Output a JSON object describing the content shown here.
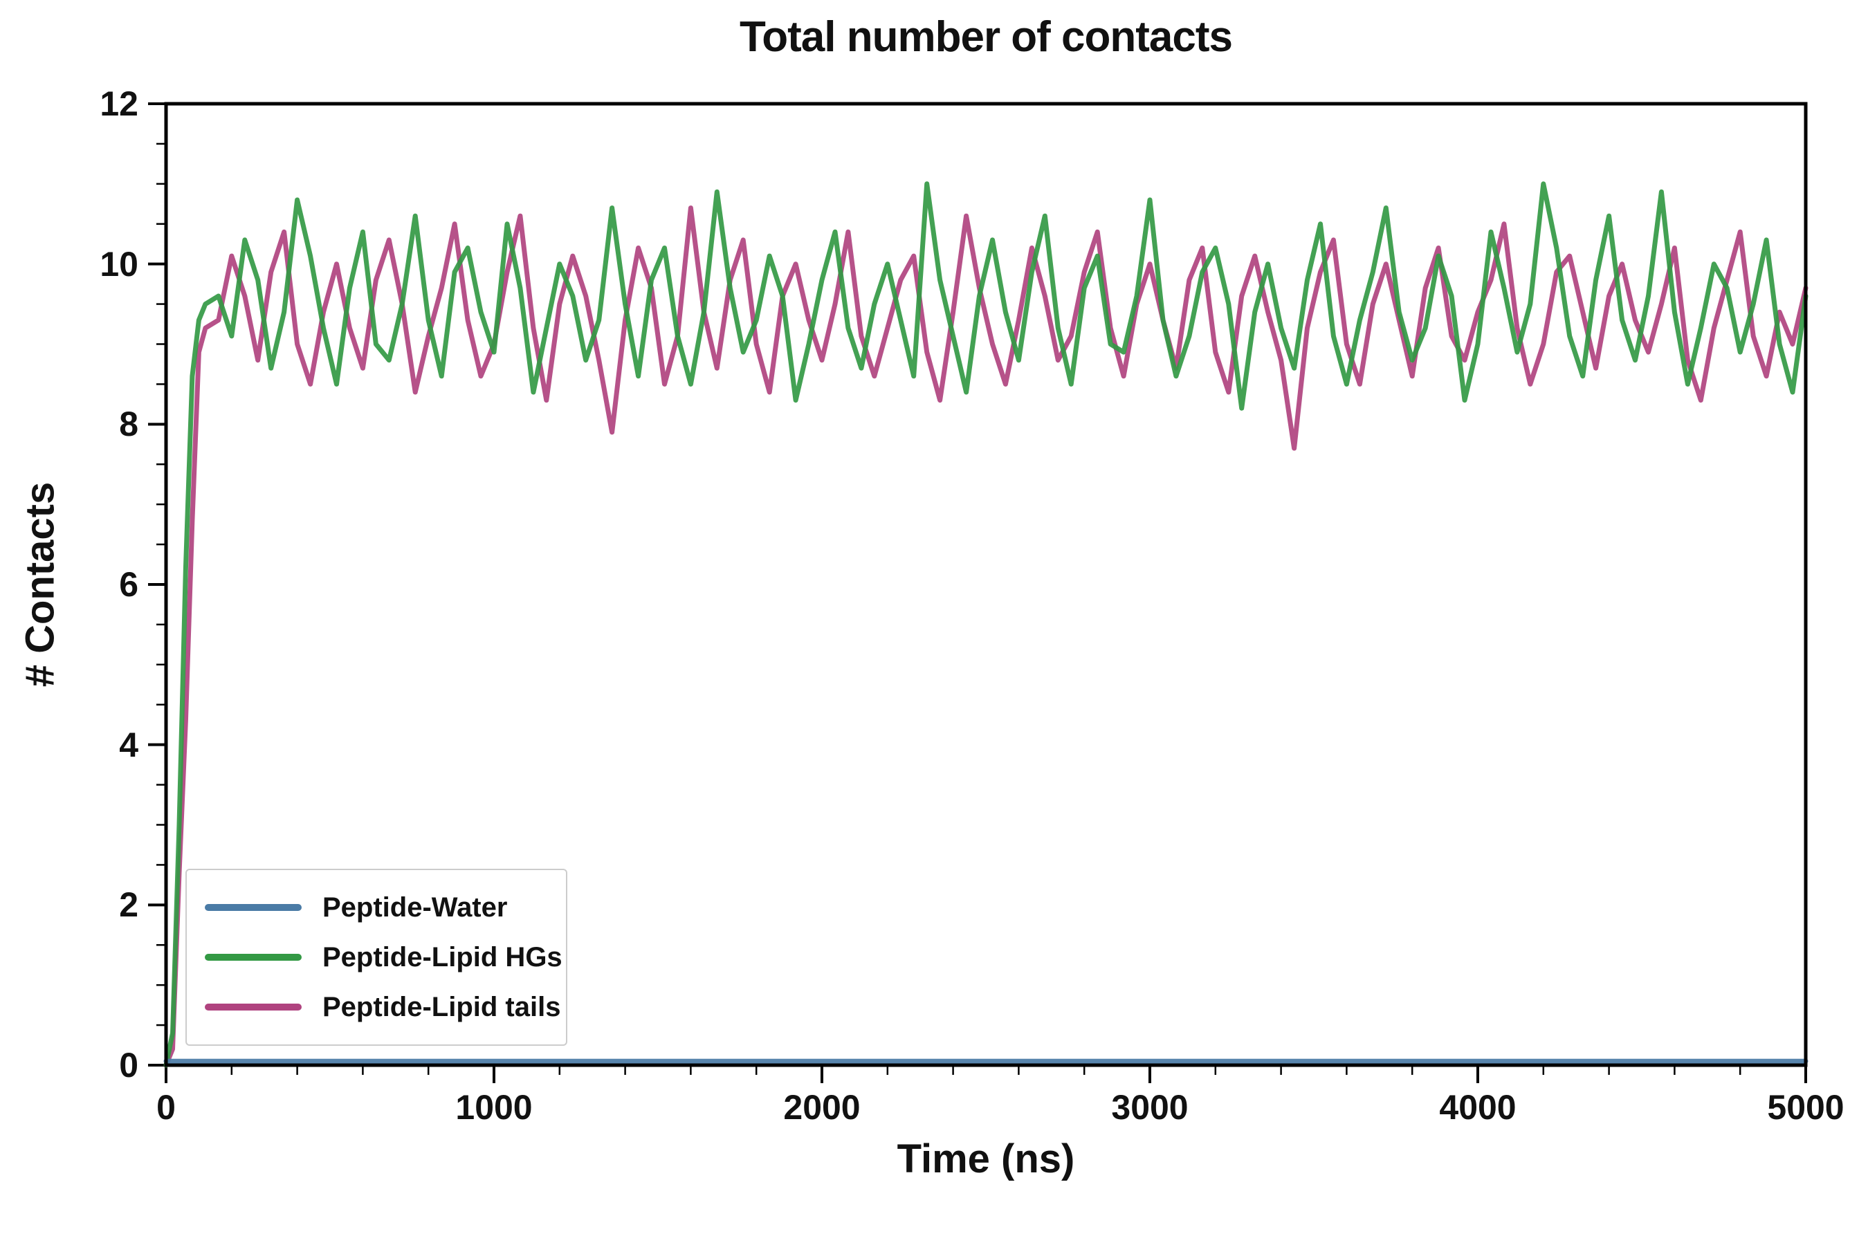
{
  "chart_data": {
    "type": "line",
    "title": "Total number of contacts",
    "xlabel": "Time (ns)",
    "ylabel": "# Contacts",
    "xlim": [
      0,
      5000
    ],
    "ylim": [
      0,
      12
    ],
    "xticks": [
      0,
      1000,
      2000,
      3000,
      4000,
      5000
    ],
    "yticks": [
      0,
      2,
      4,
      6,
      8,
      10,
      12
    ],
    "x_minor_step": 200,
    "y_minor_step": 0.5,
    "grid": false,
    "legend_position": "lower left",
    "frame": true,
    "x": [
      0,
      20,
      40,
      60,
      80,
      100,
      120,
      160,
      200,
      240,
      280,
      320,
      360,
      400,
      440,
      480,
      520,
      560,
      600,
      640,
      680,
      720,
      760,
      800,
      840,
      880,
      920,
      960,
      1000,
      1040,
      1080,
      1120,
      1160,
      1200,
      1240,
      1280,
      1320,
      1360,
      1400,
      1440,
      1480,
      1520,
      1560,
      1600,
      1640,
      1680,
      1720,
      1760,
      1800,
      1840,
      1880,
      1920,
      1960,
      2000,
      2040,
      2080,
      2120,
      2160,
      2200,
      2240,
      2280,
      2320,
      2360,
      2400,
      2440,
      2480,
      2520,
      2560,
      2600,
      2640,
      2680,
      2720,
      2760,
      2800,
      2840,
      2880,
      2920,
      2960,
      3000,
      3040,
      3080,
      3120,
      3160,
      3200,
      3240,
      3280,
      3320,
      3360,
      3400,
      3440,
      3480,
      3520,
      3560,
      3600,
      3640,
      3680,
      3720,
      3760,
      3800,
      3840,
      3880,
      3920,
      3960,
      4000,
      4040,
      4080,
      4120,
      4160,
      4200,
      4240,
      4280,
      4320,
      4360,
      4400,
      4440,
      4480,
      4520,
      4560,
      4600,
      4640,
      4680,
      4720,
      4760,
      4800,
      4840,
      4880,
      4920,
      4960,
      5000
    ],
    "series": [
      {
        "name": "Peptide-Water",
        "color": "#4a7ba6",
        "constant": 0.05
      },
      {
        "name": "Peptide-Lipid HGs",
        "color": "#339944",
        "values": [
          0,
          0.4,
          3.0,
          6.2,
          8.6,
          9.3,
          9.5,
          9.6,
          9.1,
          10.3,
          9.8,
          8.7,
          9.4,
          10.8,
          10.1,
          9.2,
          8.5,
          9.7,
          10.4,
          9.0,
          8.8,
          9.5,
          10.6,
          9.3,
          8.6,
          9.9,
          10.2,
          9.4,
          8.9,
          10.5,
          9.7,
          8.4,
          9.2,
          10.0,
          9.6,
          8.8,
          9.3,
          10.7,
          9.5,
          8.6,
          9.8,
          10.2,
          9.1,
          8.5,
          9.4,
          10.9,
          9.7,
          8.9,
          9.3,
          10.1,
          9.6,
          8.3,
          9.0,
          9.8,
          10.4,
          9.2,
          8.7,
          9.5,
          10.0,
          9.3,
          8.6,
          11.0,
          9.8,
          9.1,
          8.4,
          9.6,
          10.3,
          9.4,
          8.8,
          9.9,
          10.6,
          9.2,
          8.5,
          9.7,
          10.1,
          9.0,
          8.9,
          9.6,
          10.8,
          9.3,
          8.6,
          9.1,
          9.9,
          10.2,
          9.5,
          8.2,
          9.4,
          10.0,
          9.2,
          8.7,
          9.8,
          10.5,
          9.1,
          8.5,
          9.3,
          9.9,
          10.7,
          9.4,
          8.8,
          9.2,
          10.1,
          9.6,
          8.3,
          9.0,
          10.4,
          9.7,
          8.9,
          9.5,
          11.0,
          10.2,
          9.1,
          8.6,
          9.8,
          10.6,
          9.3,
          8.8,
          9.6,
          10.9,
          9.4,
          8.5,
          9.2,
          10.0,
          9.7,
          8.9,
          9.5,
          10.3,
          9.0,
          8.4,
          9.6
        ]
      },
      {
        "name": "Peptide-Lipid tails",
        "color": "#b0437f",
        "values": [
          0,
          0.2,
          2.4,
          4.3,
          6.8,
          8.9,
          9.2,
          9.3,
          10.1,
          9.6,
          8.8,
          9.9,
          10.4,
          9.0,
          8.5,
          9.4,
          10.0,
          9.2,
          8.7,
          9.8,
          10.3,
          9.5,
          8.4,
          9.1,
          9.7,
          10.5,
          9.3,
          8.6,
          9.0,
          9.9,
          10.6,
          9.2,
          8.3,
          9.5,
          10.1,
          9.6,
          8.8,
          7.9,
          9.3,
          10.2,
          9.7,
          8.5,
          9.1,
          10.7,
          9.4,
          8.7,
          9.8,
          10.3,
          9.0,
          8.4,
          9.6,
          10.0,
          9.3,
          8.8,
          9.5,
          10.4,
          9.1,
          8.6,
          9.2,
          9.8,
          10.1,
          8.9,
          8.3,
          9.4,
          10.6,
          9.7,
          9.0,
          8.5,
          9.3,
          10.2,
          9.6,
          8.8,
          9.1,
          9.9,
          10.4,
          9.2,
          8.6,
          9.5,
          10.0,
          9.3,
          8.7,
          9.8,
          10.2,
          8.9,
          8.4,
          9.6,
          10.1,
          9.4,
          8.8,
          7.7,
          9.2,
          9.9,
          10.3,
          9.0,
          8.5,
          9.5,
          10.0,
          9.3,
          8.6,
          9.7,
          10.2,
          9.1,
          8.8,
          9.4,
          9.8,
          10.5,
          9.2,
          8.5,
          9.0,
          9.9,
          10.1,
          9.4,
          8.7,
          9.6,
          10.0,
          9.3,
          8.9,
          9.5,
          10.2,
          8.8,
          8.3,
          9.2,
          9.8,
          10.4,
          9.1,
          8.6,
          9.4,
          9.0,
          9.7
        ]
      }
    ]
  }
}
